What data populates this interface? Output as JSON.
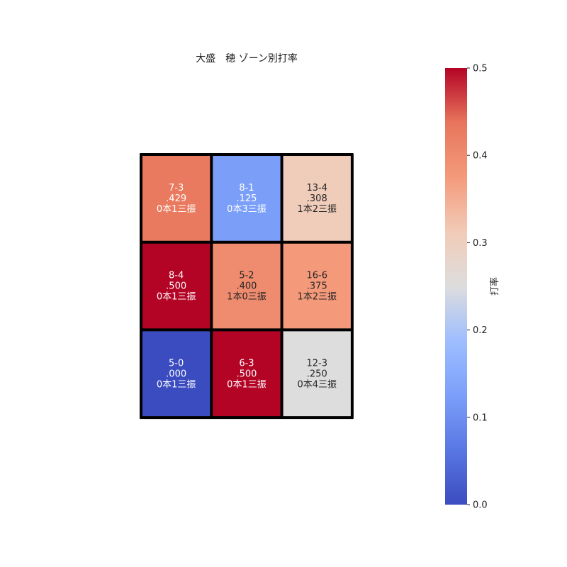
{
  "chart_data": {
    "type": "heatmap",
    "title": "大盛　穂 ゾーン別打率",
    "rows": 3,
    "cols": 3,
    "cells": [
      [
        {
          "record": "7-3",
          "avg": ".429",
          "detail": "0本1三振",
          "value": 0.429
        },
        {
          "record": "8-1",
          "avg": ".125",
          "detail": "0本3三振",
          "value": 0.125
        },
        {
          "record": "13-4",
          "avg": ".308",
          "detail": "1本2三振",
          "value": 0.308
        }
      ],
      [
        {
          "record": "8-4",
          "avg": ".500",
          "detail": "0本1三振",
          "value": 0.5
        },
        {
          "record": "5-2",
          "avg": ".400",
          "detail": "1本0三振",
          "value": 0.4
        },
        {
          "record": "16-6",
          "avg": ".375",
          "detail": "1本2三振",
          "value": 0.375
        }
      ],
      [
        {
          "record": "5-0",
          "avg": ".000",
          "detail": "0本1三振",
          "value": 0.0
        },
        {
          "record": "6-3",
          "avg": ".500",
          "detail": "0本1三振",
          "value": 0.5
        },
        {
          "record": "12-3",
          "avg": ".250",
          "detail": "0本4三振",
          "value": 0.25
        }
      ]
    ],
    "colorbar": {
      "label": "打率",
      "min": 0.0,
      "max": 0.5,
      "ticks": [
        "0.0",
        "0.1",
        "0.2",
        "0.3",
        "0.4",
        "0.5"
      ],
      "colormap": "coolwarm"
    }
  }
}
